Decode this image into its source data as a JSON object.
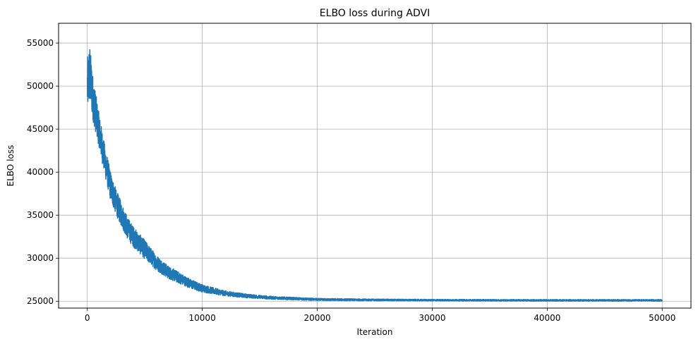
{
  "chart_data": {
    "type": "line",
    "title": "ELBO loss during ADVI",
    "xlabel": "Iteration",
    "ylabel": "ELBO loss",
    "xlim": [
      -2500,
      52500
    ],
    "ylim": [
      24200,
      57300
    ],
    "xticks": [
      0,
      10000,
      20000,
      30000,
      40000,
      50000
    ],
    "xtick_labels": [
      "0",
      "10000",
      "20000",
      "30000",
      "40000",
      "50000"
    ],
    "yticks": [
      25000,
      30000,
      35000,
      40000,
      45000,
      50000,
      55000
    ],
    "ytick_labels": [
      "25000",
      "30000",
      "35000",
      "40000",
      "45000",
      "50000",
      "55000"
    ],
    "grid": true,
    "legend": "none",
    "series": [
      {
        "color": "#1f77b4",
        "x": [
          0,
          200,
          500,
          1000,
          1500,
          2000,
          2500,
          3000,
          3500,
          4000,
          5000,
          6000,
          7000,
          8000,
          9000,
          10000,
          12000,
          14000,
          16000,
          18000,
          20000,
          25000,
          30000,
          35000,
          40000,
          45000,
          50000
        ],
        "y": [
          50000,
          51500,
          48500,
          45000,
          41500,
          38500,
          36500,
          35000,
          33500,
          32500,
          31000,
          29500,
          28400,
          27700,
          27000,
          26500,
          25900,
          25600,
          25400,
          25300,
          25200,
          25150,
          25120,
          25110,
          25100,
          25100,
          25100
        ],
        "noise_amplitude": [
          3200,
          3500,
          2600,
          2000,
          1800,
          1700,
          1500,
          1400,
          1300,
          1200,
          1100,
          900,
          750,
          650,
          550,
          450,
          300,
          220,
          180,
          150,
          130,
          110,
          100,
          100,
          100,
          100,
          100
        ]
      }
    ]
  }
}
